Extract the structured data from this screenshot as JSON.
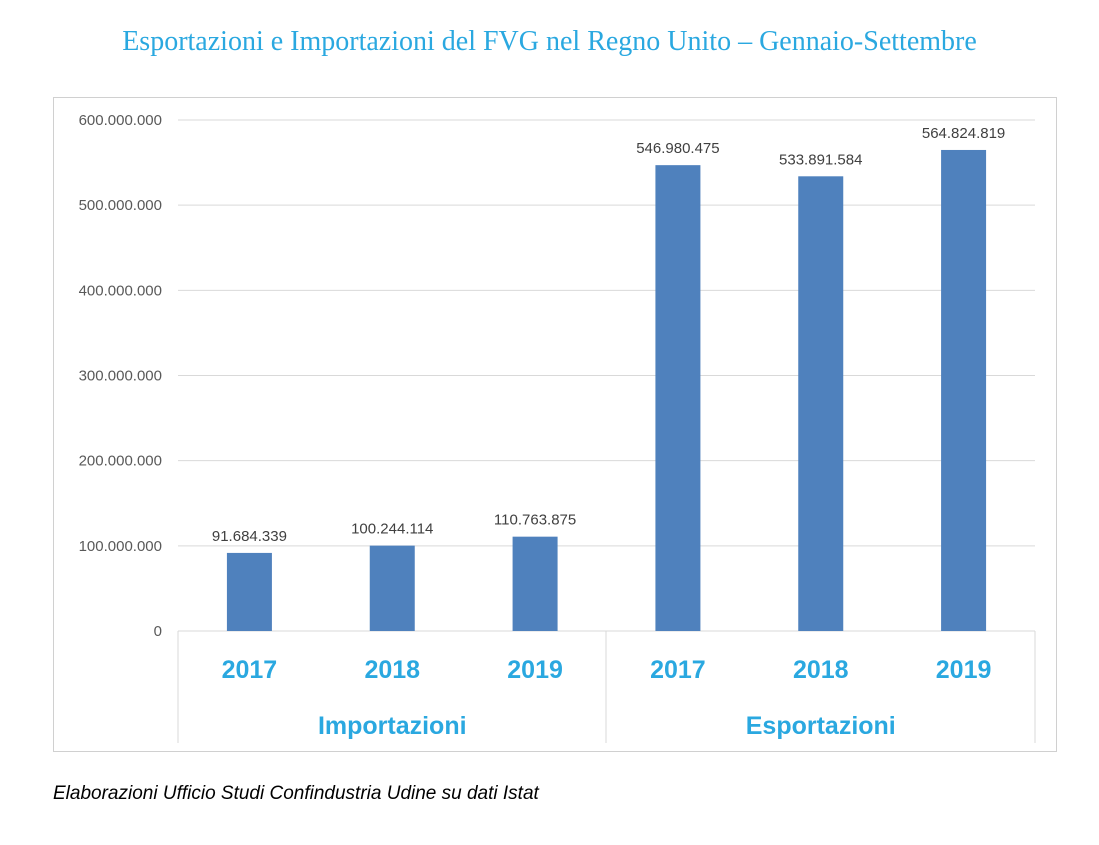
{
  "chart_data": {
    "type": "bar",
    "title": "Esportazioni e Importazioni del FVG nel Regno Unito – Gennaio-Settembre",
    "groups": [
      {
        "name": "Importazioni",
        "categories": [
          "2017",
          "2018",
          "2019"
        ],
        "values": [
          91684339,
          100244114,
          110763875
        ],
        "value_labels": [
          "91.684.339",
          "100.244.114",
          "110.763.875"
        ]
      },
      {
        "name": "Esportazioni",
        "categories": [
          "2017",
          "2018",
          "2019"
        ],
        "values": [
          546980475,
          533891584,
          564824819
        ],
        "value_labels": [
          "546.980.475",
          "533.891.584",
          "564.824.819"
        ]
      }
    ],
    "ylim": [
      0,
      600000000
    ],
    "y_ticks": [
      0,
      100000000,
      200000000,
      300000000,
      400000000,
      500000000,
      600000000
    ],
    "y_tick_labels": [
      "0",
      "100.000.000",
      "200.000.000",
      "300.000.000",
      "400.000.000",
      "500.000.000",
      "600.000.000"
    ],
    "grid": true,
    "xlabel": "",
    "ylabel": "",
    "bar_color": "#4f81bd",
    "label_color": "#2aa8e0"
  },
  "source_note": "Elaborazioni Ufficio Studi Confindustria Udine su dati Istat"
}
